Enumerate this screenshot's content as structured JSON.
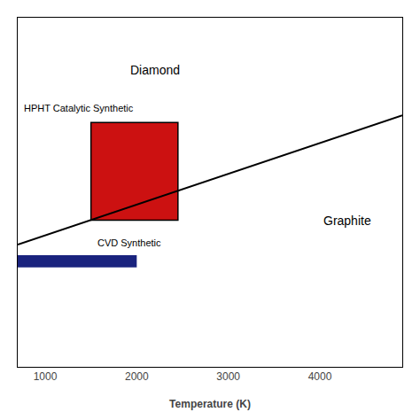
{
  "chart_data": {
    "type": "line",
    "xlabel": "Temperature (K)",
    "xlim": [
      700,
      4900
    ],
    "ylim": [
      0,
      10
    ],
    "xticks": [
      1000,
      2000,
      3000,
      4000
    ],
    "tick_labels": "x",
    "grid": false,
    "x": [
      700,
      4900
    ],
    "values": [
      3.5,
      7.2
    ],
    "color": "#000000",
    "rectangles": [
      {
        "x": 1500,
        "y": 4.2,
        "width": 950,
        "height": 2.8,
        "color": "#cc1111",
        "edge_color": "#000000"
      },
      {
        "x": 700,
        "y": 2.85,
        "width": 1300,
        "height": 0.35,
        "color": "#1a237e"
      }
    ],
    "annotations": [
      {
        "text": "Diamond",
        "x": 2200,
        "y": 8.5
      },
      {
        "text": "Graphite",
        "x": 4300,
        "y": 4.2
      },
      {
        "text": "HPHT Catalytic Synthetic",
        "x": 750,
        "y": 7.4
      },
      {
        "text": "CVD Synthetic",
        "x": 1550,
        "y": 3.55
      }
    ]
  }
}
